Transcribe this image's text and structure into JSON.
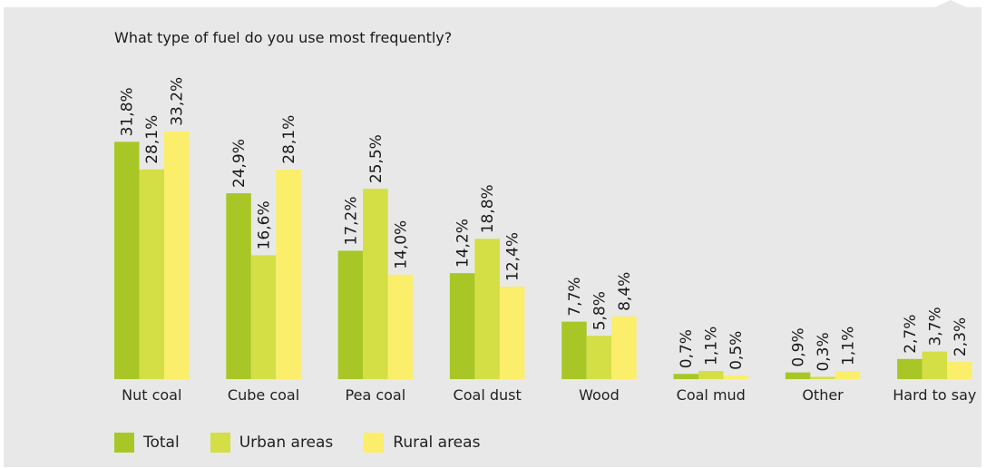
{
  "chart_data": {
    "type": "bar",
    "title": "What type of fuel do you use most frequently?",
    "categories": [
      "Nut coal",
      "Cube coal",
      "Pea coal",
      "Coal dust",
      "Wood",
      "Coal mud",
      "Other",
      "Hard to say"
    ],
    "series": [
      {
        "name": "Total",
        "color": "#a8c726",
        "values": [
          31.8,
          24.9,
          17.2,
          14.2,
          7.7,
          0.7,
          0.9,
          2.7
        ],
        "labels": [
          "31,8%",
          "24,9%",
          "17,2%",
          "14,2%",
          "7,7%",
          "0,7%",
          "0,9%",
          "2,7%"
        ]
      },
      {
        "name": "Urban areas",
        "color": "#d4de45",
        "values": [
          28.1,
          16.6,
          25.5,
          18.8,
          5.8,
          1.1,
          0.3,
          3.7
        ],
        "labels": [
          "28,1%",
          "16,6%",
          "25,5%",
          "18,8%",
          "5,8%",
          "1,1%",
          "0,3%",
          "3,7%"
        ]
      },
      {
        "name": "Rural areas",
        "color": "#fbee6b",
        "values": [
          33.2,
          28.1,
          14.0,
          12.4,
          8.4,
          0.5,
          1.1,
          2.3
        ],
        "labels": [
          "33,2%",
          "28,1%",
          "14,0%",
          "12,4%",
          "8,4%",
          "0,5%",
          "1,1%",
          "2,3%"
        ]
      }
    ],
    "ylim": [
      0,
      35
    ],
    "grid": false,
    "legend_position": "bottom-left"
  }
}
